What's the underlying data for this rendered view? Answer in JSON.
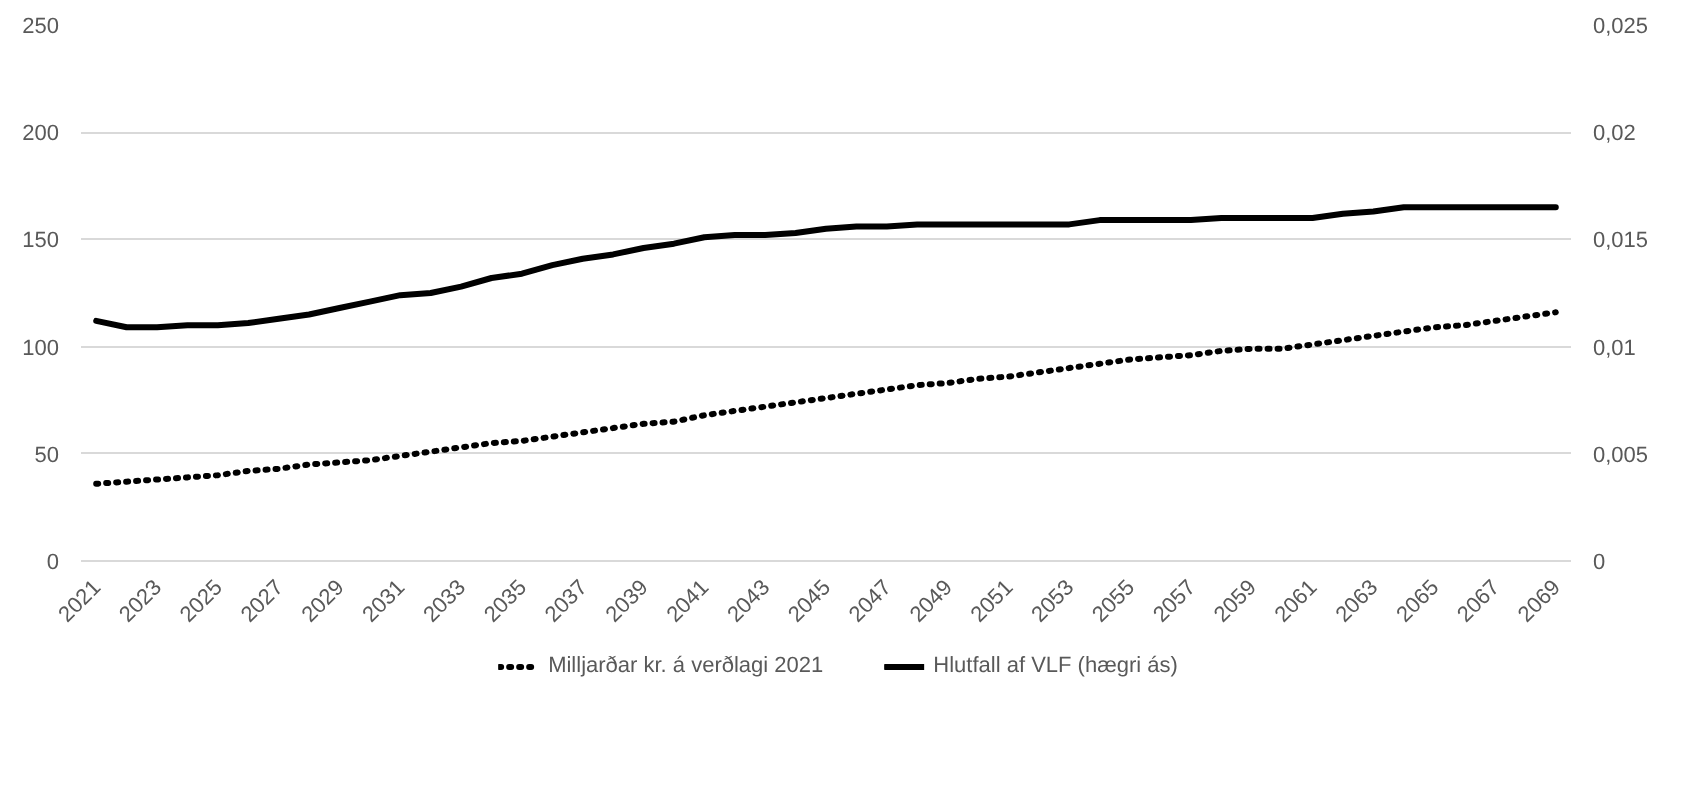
{
  "chart_data": {
    "type": "line",
    "x": [
      2021,
      2022,
      2023,
      2024,
      2025,
      2026,
      2027,
      2028,
      2029,
      2030,
      2031,
      2032,
      2033,
      2034,
      2035,
      2036,
      2037,
      2038,
      2039,
      2040,
      2041,
      2042,
      2043,
      2044,
      2045,
      2046,
      2047,
      2048,
      2049,
      2050,
      2051,
      2052,
      2053,
      2054,
      2055,
      2056,
      2057,
      2058,
      2059,
      2060,
      2061,
      2062,
      2063,
      2064,
      2065,
      2066,
      2067,
      2068,
      2069
    ],
    "xlim": [
      2020.5,
      2069.5
    ],
    "xticks": [
      2021,
      2023,
      2025,
      2027,
      2029,
      2031,
      2033,
      2035,
      2037,
      2039,
      2041,
      2043,
      2045,
      2047,
      2049,
      2051,
      2053,
      2055,
      2057,
      2059,
      2061,
      2063,
      2065,
      2067,
      2069
    ],
    "ylim": [
      0,
      250
    ],
    "yticks": [
      0,
      50,
      100,
      150,
      200,
      250
    ],
    "y2lim": [
      0,
      0.025
    ],
    "y2ticks": [
      {
        "value": 0,
        "label": "0"
      },
      {
        "value": 0.005,
        "label": "0,005"
      },
      {
        "value": 0.01,
        "label": "0,01"
      },
      {
        "value": 0.015,
        "label": "0,015"
      },
      {
        "value": 0.02,
        "label": "0,02"
      },
      {
        "value": 0.025,
        "label": "0,025"
      }
    ],
    "grid": "y",
    "legend": "bottom",
    "series": [
      {
        "name": "Milljarðar kr. á verðlagi 2021",
        "color": "#000000",
        "line_style": "dotted",
        "values": [
          36,
          37,
          38,
          39,
          40,
          42,
          43,
          45,
          46,
          47,
          49,
          51,
          53,
          55,
          56,
          58,
          60,
          62,
          64,
          65,
          68,
          70,
          72,
          74,
          76,
          78,
          80,
          82,
          83,
          85,
          86,
          88,
          90,
          92,
          94,
          95,
          96,
          98,
          99,
          99,
          101,
          103,
          105,
          107,
          109,
          110,
          112,
          114,
          116
        ]
      },
      {
        "name": "Hlutfall af VLF (hægri ás)",
        "color": "#000000",
        "line_style": "solid",
        "axis": "y2",
        "values": [
          0.0112,
          0.0109,
          0.0109,
          0.011,
          0.011,
          0.0111,
          0.0113,
          0.0115,
          0.0118,
          0.0121,
          0.0124,
          0.0125,
          0.0128,
          0.0132,
          0.0134,
          0.0138,
          0.0141,
          0.0143,
          0.0146,
          0.0148,
          0.0151,
          0.0152,
          0.0152,
          0.0153,
          0.0155,
          0.0156,
          0.0156,
          0.0157,
          0.0157,
          0.0157,
          0.0157,
          0.0157,
          0.0157,
          0.0159,
          0.0159,
          0.0159,
          0.0159,
          0.016,
          0.016,
          0.016,
          0.016,
          0.0162,
          0.0163,
          0.0165,
          0.0165,
          0.0165,
          0.0165,
          0.0165,
          0.0165
        ]
      }
    ]
  }
}
